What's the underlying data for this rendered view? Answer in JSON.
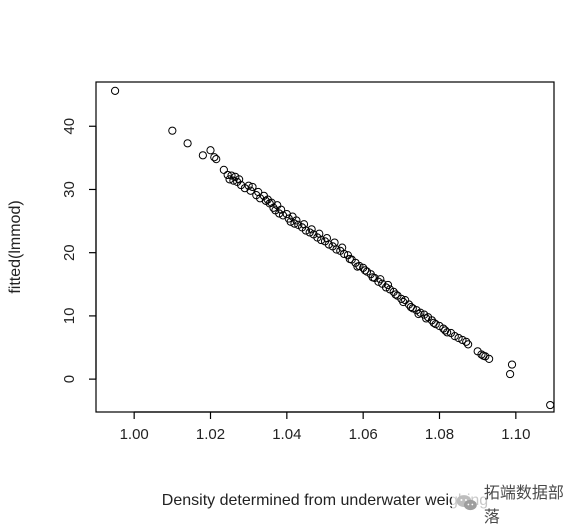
{
  "chart_data": {
    "type": "scatter",
    "title": "",
    "xlabel": "Density determined from underwater weighing",
    "ylabel": "fitted(lmmod)",
    "xlim": [
      0.99,
      1.11
    ],
    "ylim": [
      -5.2,
      47
    ],
    "x_ticks": [
      1.0,
      1.02,
      1.04,
      1.06,
      1.08,
      1.1
    ],
    "x_tick_labels": [
      "1.00",
      "1.02",
      "1.04",
      "1.06",
      "1.08",
      "1.10"
    ],
    "y_ticks": [
      0,
      10,
      20,
      30,
      40
    ],
    "y_tick_labels": [
      "0",
      "10",
      "20",
      "30",
      "40"
    ],
    "grid": false,
    "legend": "none",
    "marker": "open-circle",
    "point_color": "#000000",
    "points": [
      [
        0.995,
        45.6
      ],
      [
        1.01,
        39.3
      ],
      [
        1.014,
        37.3
      ],
      [
        1.018,
        35.4
      ],
      [
        1.02,
        36.2
      ],
      [
        1.021,
        35.1
      ],
      [
        1.0215,
        34.8
      ],
      [
        1.0235,
        33.1
      ],
      [
        1.0245,
        32.3
      ],
      [
        1.025,
        31.6
      ],
      [
        1.0255,
        32.2
      ],
      [
        1.026,
        31.4
      ],
      [
        1.0265,
        32.0
      ],
      [
        1.027,
        31.2
      ],
      [
        1.0275,
        31.6
      ],
      [
        1.028,
        30.7
      ],
      [
        1.029,
        30.2
      ],
      [
        1.03,
        30.6
      ],
      [
        1.0305,
        29.8
      ],
      [
        1.031,
        30.4
      ],
      [
        1.032,
        29.1
      ],
      [
        1.0325,
        29.6
      ],
      [
        1.033,
        28.6
      ],
      [
        1.034,
        29.0
      ],
      [
        1.0345,
        28.2
      ],
      [
        1.035,
        28.4
      ],
      [
        1.0355,
        27.8
      ],
      [
        1.036,
        27.9
      ],
      [
        1.0365,
        27.1
      ],
      [
        1.037,
        26.7
      ],
      [
        1.0375,
        27.5
      ],
      [
        1.038,
        26.2
      ],
      [
        1.0385,
        26.8
      ],
      [
        1.039,
        25.9
      ],
      [
        1.04,
        26.1
      ],
      [
        1.0405,
        25.4
      ],
      [
        1.041,
        24.9
      ],
      [
        1.0415,
        25.7
      ],
      [
        1.042,
        24.6
      ],
      [
        1.0425,
        25.1
      ],
      [
        1.043,
        24.4
      ],
      [
        1.044,
        24.0
      ],
      [
        1.0445,
        24.5
      ],
      [
        1.045,
        23.5
      ],
      [
        1.046,
        23.2
      ],
      [
        1.0465,
        23.7
      ],
      [
        1.047,
        22.9
      ],
      [
        1.048,
        22.4
      ],
      [
        1.0485,
        23.0
      ],
      [
        1.049,
        22.0
      ],
      [
        1.05,
        21.8
      ],
      [
        1.0505,
        22.3
      ],
      [
        1.051,
        21.3
      ],
      [
        1.052,
        21.0
      ],
      [
        1.0525,
        21.6
      ],
      [
        1.053,
        20.5
      ],
      [
        1.054,
        20.3
      ],
      [
        1.0545,
        20.8
      ],
      [
        1.055,
        19.8
      ],
      [
        1.056,
        19.6
      ],
      [
        1.0565,
        19.0
      ],
      [
        1.057,
        18.9
      ],
      [
        1.058,
        18.4
      ],
      [
        1.0585,
        17.8
      ],
      [
        1.059,
        17.9
      ],
      [
        1.06,
        17.6
      ],
      [
        1.0605,
        17.2
      ],
      [
        1.061,
        17.0
      ],
      [
        1.062,
        16.6
      ],
      [
        1.0625,
        16.1
      ],
      [
        1.063,
        16.0
      ],
      [
        1.064,
        15.4
      ],
      [
        1.0645,
        15.8
      ],
      [
        1.065,
        15.1
      ],
      [
        1.066,
        14.5
      ],
      [
        1.0665,
        14.9
      ],
      [
        1.067,
        14.2
      ],
      [
        1.068,
        13.8
      ],
      [
        1.0685,
        13.4
      ],
      [
        1.069,
        13.2
      ],
      [
        1.07,
        12.7
      ],
      [
        1.0705,
        12.2
      ],
      [
        1.071,
        12.5
      ],
      [
        1.072,
        11.8
      ],
      [
        1.0725,
        11.4
      ],
      [
        1.073,
        11.2
      ],
      [
        1.074,
        10.9
      ],
      [
        1.0745,
        10.3
      ],
      [
        1.075,
        10.5
      ],
      [
        1.076,
        10.2
      ],
      [
        1.0765,
        9.6
      ],
      [
        1.077,
        9.8
      ],
      [
        1.078,
        9.3
      ],
      [
        1.0785,
        8.9
      ],
      [
        1.079,
        8.7
      ],
      [
        1.08,
        8.4
      ],
      [
        1.081,
        8.0
      ],
      [
        1.0815,
        7.7
      ],
      [
        1.082,
        7.4
      ],
      [
        1.083,
        7.3
      ],
      [
        1.084,
        6.8
      ],
      [
        1.085,
        6.5
      ],
      [
        1.086,
        6.2
      ],
      [
        1.087,
        5.9
      ],
      [
        1.0875,
        5.5
      ],
      [
        1.09,
        4.4
      ],
      [
        1.091,
        3.9
      ],
      [
        1.0915,
        3.7
      ],
      [
        1.092,
        3.6
      ],
      [
        1.093,
        3.2
      ],
      [
        1.0985,
        0.8
      ],
      [
        1.099,
        2.3
      ],
      [
        1.109,
        -4.1
      ]
    ]
  },
  "watermark": {
    "text": "拓端数据部落",
    "icon": "wechat-icon"
  }
}
